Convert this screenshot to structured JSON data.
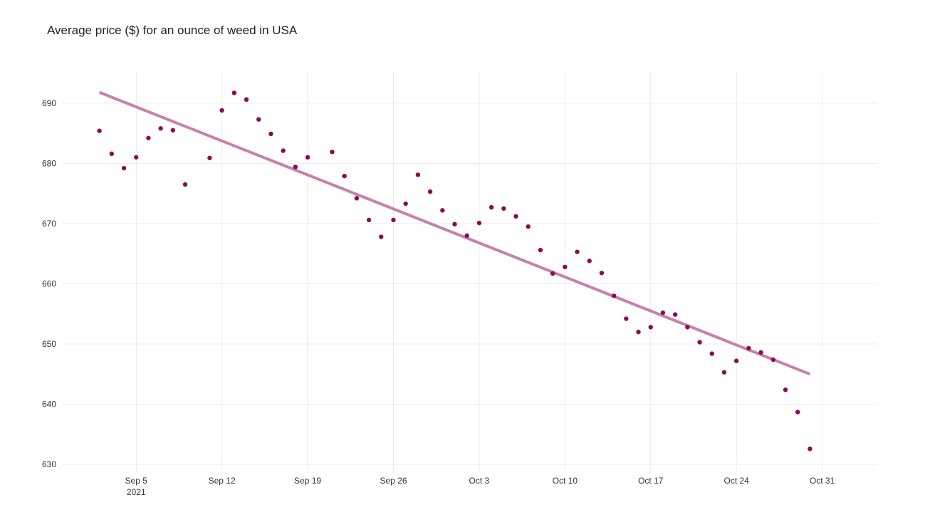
{
  "chart_data": {
    "type": "scatter",
    "title": "Average price ($) for an ounce of weed in USA",
    "xlabel": "",
    "ylabel": "",
    "x_start": "2021-09-02",
    "x_tick_labels": [
      "Sep 5",
      "Sep 12",
      "Sep 19",
      "Sep 26",
      "Oct 3",
      "Oct 10",
      "Oct 17",
      "Oct 24",
      "Oct 31"
    ],
    "x_tick_days": [
      3,
      10,
      17,
      24,
      31,
      38,
      45,
      52,
      59
    ],
    "x_year_label": "2021",
    "x_range_days": [
      -3,
      63.5
    ],
    "y_ticks": [
      630,
      640,
      650,
      660,
      670,
      680,
      690
    ],
    "ylim": [
      628.6,
      695.3
    ],
    "grid": true,
    "colors": {
      "points": "#8b0a57",
      "trend": "#c681ad",
      "grid": "#ebebeb"
    },
    "series": [
      {
        "name": "Average price",
        "mode": "markers",
        "points": [
          {
            "day": 0,
            "y": 685.4
          },
          {
            "day": 1,
            "y": 681.6
          },
          {
            "day": 2,
            "y": 679.2
          },
          {
            "day": 3,
            "y": 681.0
          },
          {
            "day": 4,
            "y": 684.2
          },
          {
            "day": 5,
            "y": 685.8
          },
          {
            "day": 6,
            "y": 685.5
          },
          {
            "day": 7,
            "y": 676.5
          },
          {
            "day": 9,
            "y": 680.9
          },
          {
            "day": 10,
            "y": 688.8
          },
          {
            "day": 11,
            "y": 691.7
          },
          {
            "day": 12,
            "y": 690.6
          },
          {
            "day": 13,
            "y": 687.3
          },
          {
            "day": 14,
            "y": 684.9
          },
          {
            "day": 15,
            "y": 682.1
          },
          {
            "day": 16,
            "y": 679.4
          },
          {
            "day": 17,
            "y": 681.0
          },
          {
            "day": 19,
            "y": 681.9
          },
          {
            "day": 20,
            "y": 677.9
          },
          {
            "day": 21,
            "y": 674.2
          },
          {
            "day": 22,
            "y": 670.6
          },
          {
            "day": 23,
            "y": 667.8
          },
          {
            "day": 24,
            "y": 670.6
          },
          {
            "day": 25,
            "y": 673.3
          },
          {
            "day": 26,
            "y": 678.1
          },
          {
            "day": 27,
            "y": 675.3
          },
          {
            "day": 28,
            "y": 672.2
          },
          {
            "day": 29,
            "y": 669.9
          },
          {
            "day": 30,
            "y": 668.0
          },
          {
            "day": 31,
            "y": 670.1
          },
          {
            "day": 32,
            "y": 672.7
          },
          {
            "day": 33,
            "y": 672.5
          },
          {
            "day": 34,
            "y": 671.2
          },
          {
            "day": 35,
            "y": 669.5
          },
          {
            "day": 36,
            "y": 665.6
          },
          {
            "day": 37,
            "y": 661.7
          },
          {
            "day": 38,
            "y": 662.8
          },
          {
            "day": 39,
            "y": 665.3
          },
          {
            "day": 40,
            "y": 663.8
          },
          {
            "day": 41,
            "y": 661.8
          },
          {
            "day": 42,
            "y": 658.0
          },
          {
            "day": 43,
            "y": 654.2
          },
          {
            "day": 44,
            "y": 652.0
          },
          {
            "day": 45,
            "y": 652.8
          },
          {
            "day": 46,
            "y": 655.2
          },
          {
            "day": 47,
            "y": 654.9
          },
          {
            "day": 48,
            "y": 652.8
          },
          {
            "day": 49,
            "y": 650.3
          },
          {
            "day": 50,
            "y": 648.4
          },
          {
            "day": 51,
            "y": 645.3
          },
          {
            "day": 52,
            "y": 647.2
          },
          {
            "day": 53,
            "y": 649.3
          },
          {
            "day": 54,
            "y": 648.6
          },
          {
            "day": 55,
            "y": 647.4
          },
          {
            "day": 56,
            "y": 642.4
          },
          {
            "day": 57,
            "y": 638.7
          },
          {
            "day": 58,
            "y": 632.6
          }
        ]
      },
      {
        "name": "Trend",
        "mode": "lines",
        "points": [
          {
            "day": 0,
            "y": 691.8
          },
          {
            "day": 58,
            "y": 645.0
          }
        ]
      }
    ]
  }
}
